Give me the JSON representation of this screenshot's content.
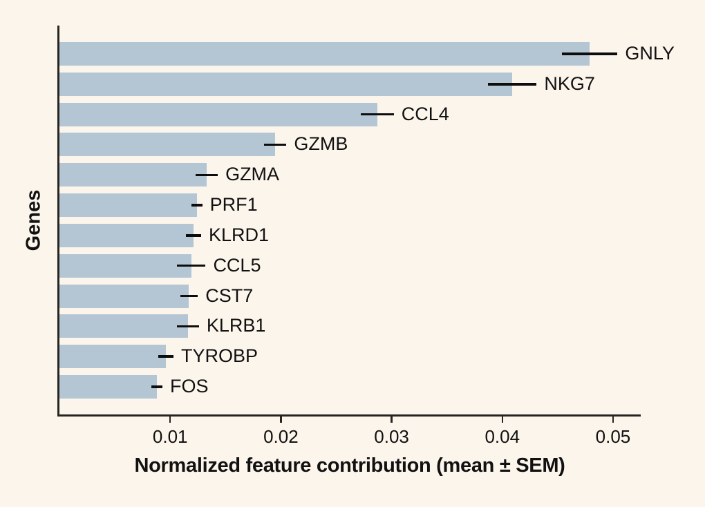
{
  "chart_data": {
    "type": "bar",
    "orientation": "horizontal",
    "title": "",
    "xlabel": "Normalized feature contribution (mean ± SEM)",
    "ylabel": "Genes",
    "categories": [
      "GNLY",
      "NKG7",
      "CCL4",
      "GZMB",
      "GZMA",
      "PRF1",
      "KLRD1",
      "CCL5",
      "CST7",
      "KLRB1",
      "TYROBP",
      "FOS"
    ],
    "values": [
      0.0479,
      0.0409,
      0.0287,
      0.0195,
      0.0133,
      0.0124,
      0.0121,
      0.0119,
      0.0117,
      0.0116,
      0.0096,
      0.0088
    ],
    "errors": [
      0.0025,
      0.0022,
      0.0015,
      0.001,
      0.001,
      0.0005,
      0.0007,
      0.0013,
      0.0008,
      0.001,
      0.0007,
      0.0005
    ],
    "error_type": "SEM",
    "xlim": [
      0,
      0.0525
    ],
    "xticks": [
      0.01,
      0.02,
      0.03,
      0.04,
      0.05
    ],
    "xtick_labels": [
      "0.01",
      "0.02",
      "0.03",
      "0.04",
      "0.05"
    ],
    "grid": false,
    "legend_position": "none",
    "colors": {
      "background": "#fcf5ec",
      "bar": "#b4c6d3",
      "axis": "#26251f",
      "error_bar": "#0d0d0d",
      "text": "#111111"
    }
  }
}
